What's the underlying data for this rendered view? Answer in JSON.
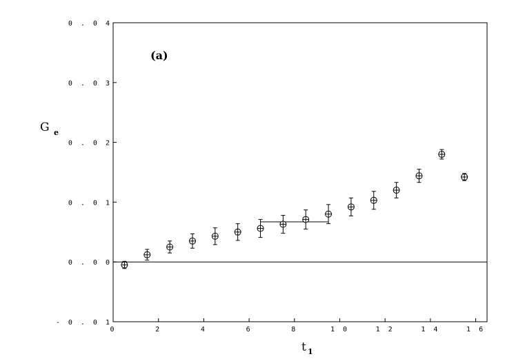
{
  "chart_data": {
    "type": "scatter",
    "annotation": "(a)",
    "xlabel": {
      "main": "t",
      "sub": "1"
    },
    "ylabel": {
      "main": "G",
      "sub": "e"
    },
    "xlim": [
      0,
      16.5
    ],
    "ylim": [
      -0.01,
      0.04
    ],
    "xticks": [
      0,
      2,
      4,
      6,
      8,
      10,
      12,
      14,
      16
    ],
    "xtick_labels": [
      "0",
      "2",
      "4",
      "6",
      "8",
      "1 0",
      "1 2",
      "1 4",
      "1 6"
    ],
    "yticks": [
      -0.01,
      0.0,
      0.01,
      0.02,
      0.03,
      0.04
    ],
    "ytick_labels": [
      "- 0 . 0 1",
      "0 . 0 0",
      "0 . 0 1",
      "0 . 0 2",
      "0 . 0 3",
      "0 . 0 4"
    ],
    "reference_line_y": 0.0,
    "points": [
      {
        "x": 0.5,
        "y": -0.0005,
        "err": 0.0006
      },
      {
        "x": 1.5,
        "y": 0.0012,
        "err": 0.0009
      },
      {
        "x": 2.5,
        "y": 0.0025,
        "err": 0.001
      },
      {
        "x": 3.5,
        "y": 0.0035,
        "err": 0.0012
      },
      {
        "x": 4.5,
        "y": 0.0043,
        "err": 0.0014
      },
      {
        "x": 5.5,
        "y": 0.005,
        "err": 0.0014
      },
      {
        "x": 6.5,
        "y": 0.0056,
        "err": 0.0015
      },
      {
        "x": 7.5,
        "y": 0.0063,
        "err": 0.0015
      },
      {
        "x": 8.5,
        "y": 0.0071,
        "err": 0.0016
      },
      {
        "x": 9.5,
        "y": 0.008,
        "err": 0.0016
      },
      {
        "x": 10.5,
        "y": 0.0092,
        "err": 0.0015
      },
      {
        "x": 11.5,
        "y": 0.0103,
        "err": 0.0015
      },
      {
        "x": 12.5,
        "y": 0.012,
        "err": 0.0013
      },
      {
        "x": 13.5,
        "y": 0.0144,
        "err": 0.0011
      },
      {
        "x": 14.5,
        "y": 0.018,
        "err": 0.0008
      },
      {
        "x": 15.5,
        "y": 0.0142,
        "err": 0.0006
      }
    ],
    "fit_line": {
      "x_start": 6.5,
      "x_end": 9.5,
      "y": 0.0067
    }
  }
}
